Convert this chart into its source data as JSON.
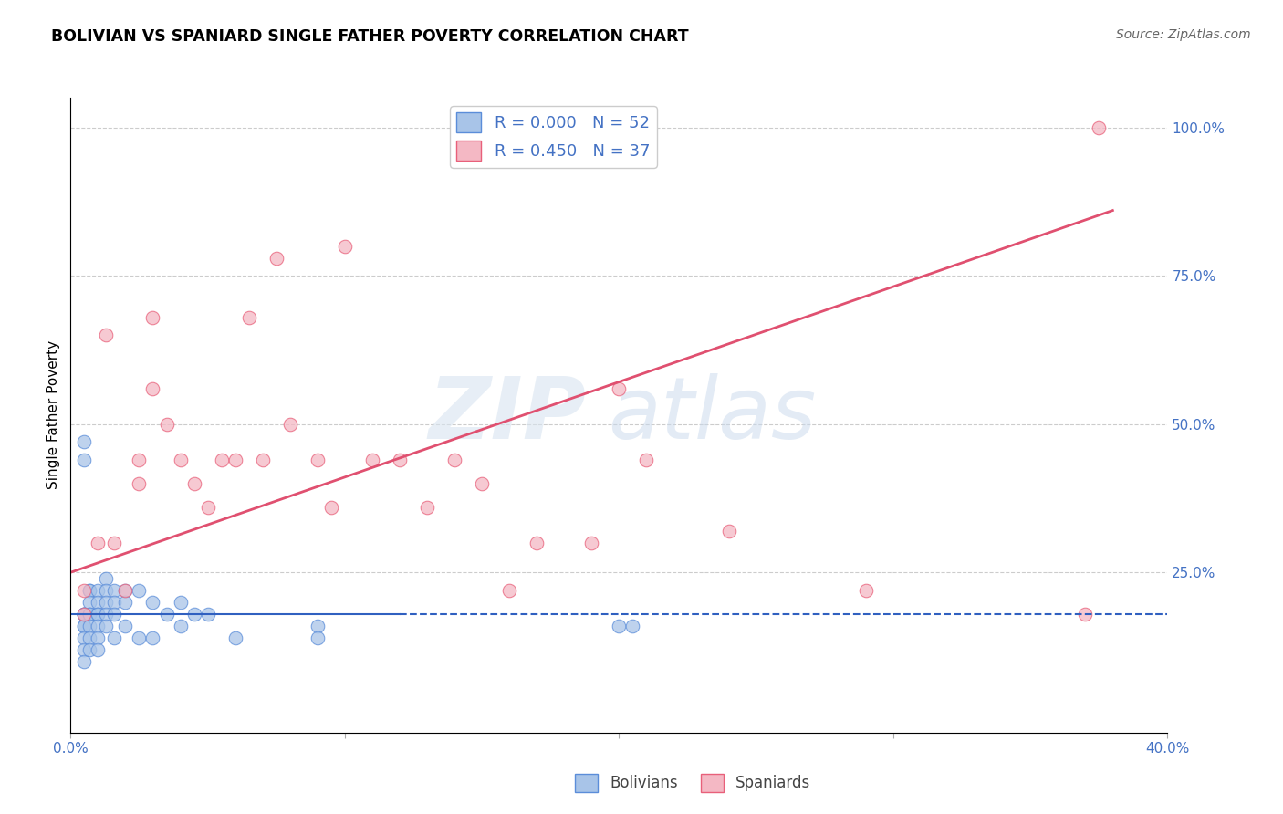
{
  "title": "BOLIVIAN VS SPANIARD SINGLE FATHER POVERTY CORRELATION CHART",
  "source": "Source: ZipAtlas.com",
  "ylabel": "Single Father Poverty",
  "xlim": [
    0.0,
    0.4
  ],
  "ylim": [
    -0.02,
    1.05
  ],
  "xticks": [
    0.0,
    0.1,
    0.2,
    0.3,
    0.4
  ],
  "xtick_labels": [
    "0.0%",
    "",
    "",
    "",
    "40.0%"
  ],
  "ytick_labels_right": [
    "100.0%",
    "75.0%",
    "50.0%",
    "25.0%",
    ""
  ],
  "yticks": [
    1.0,
    0.75,
    0.5,
    0.25,
    0.0
  ],
  "grid_lines": [
    0.25,
    0.5,
    0.75,
    1.0
  ],
  "blue_color": "#a8c4e8",
  "pink_color": "#f4b8c4",
  "blue_edge_color": "#5b8dd9",
  "pink_edge_color": "#e8607a",
  "blue_line_color": "#3060c0",
  "pink_line_color": "#e05070",
  "right_axis_color": "#4472c4",
  "legend_R_blue": "R = 0.000",
  "legend_N_blue": "N = 52",
  "legend_R_pink": "R = 0.450",
  "legend_N_pink": "N = 37",
  "blue_line_y": 0.18,
  "blue_line_solid_end": 0.12,
  "pink_line_x0": 0.0,
  "pink_line_y0": 0.25,
  "pink_line_x1": 0.38,
  "pink_line_y1": 0.86,
  "bolivians_x": [
    0.005,
    0.005,
    0.005,
    0.005,
    0.005,
    0.005,
    0.005,
    0.005,
    0.005,
    0.007,
    0.007,
    0.007,
    0.007,
    0.007,
    0.007,
    0.007,
    0.007,
    0.01,
    0.01,
    0.01,
    0.01,
    0.01,
    0.01,
    0.01,
    0.013,
    0.013,
    0.013,
    0.013,
    0.013,
    0.016,
    0.016,
    0.016,
    0.016,
    0.02,
    0.02,
    0.02,
    0.025,
    0.025,
    0.03,
    0.03,
    0.035,
    0.04,
    0.04,
    0.045,
    0.05,
    0.06,
    0.09,
    0.09,
    0.2,
    0.205,
    0.005,
    0.005
  ],
  "bolivians_y": [
    0.18,
    0.18,
    0.18,
    0.18,
    0.16,
    0.16,
    0.14,
    0.12,
    0.1,
    0.22,
    0.22,
    0.2,
    0.18,
    0.18,
    0.16,
    0.14,
    0.12,
    0.22,
    0.2,
    0.18,
    0.18,
    0.16,
    0.14,
    0.12,
    0.24,
    0.22,
    0.2,
    0.18,
    0.16,
    0.22,
    0.2,
    0.18,
    0.14,
    0.22,
    0.2,
    0.16,
    0.22,
    0.14,
    0.2,
    0.14,
    0.18,
    0.2,
    0.16,
    0.18,
    0.18,
    0.14,
    0.16,
    0.14,
    0.16,
    0.16,
    0.47,
    0.44
  ],
  "spaniards_x": [
    0.005,
    0.005,
    0.01,
    0.013,
    0.016,
    0.02,
    0.025,
    0.025,
    0.03,
    0.03,
    0.035,
    0.04,
    0.045,
    0.05,
    0.055,
    0.06,
    0.065,
    0.07,
    0.075,
    0.08,
    0.09,
    0.095,
    0.1,
    0.11,
    0.12,
    0.13,
    0.14,
    0.15,
    0.16,
    0.17,
    0.19,
    0.2,
    0.21,
    0.24,
    0.29,
    0.37,
    0.375
  ],
  "spaniards_y": [
    0.22,
    0.18,
    0.3,
    0.65,
    0.3,
    0.22,
    0.44,
    0.4,
    0.68,
    0.56,
    0.5,
    0.44,
    0.4,
    0.36,
    0.44,
    0.44,
    0.68,
    0.44,
    0.78,
    0.5,
    0.44,
    0.36,
    0.8,
    0.44,
    0.44,
    0.36,
    0.44,
    0.4,
    0.22,
    0.3,
    0.3,
    0.56,
    0.44,
    0.32,
    0.22,
    0.18,
    1.0
  ]
}
